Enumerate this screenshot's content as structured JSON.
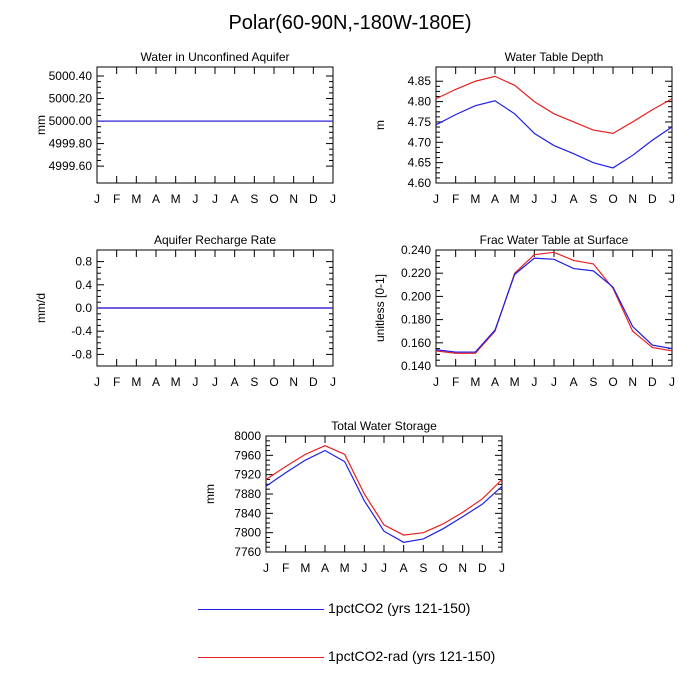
{
  "title": "Polar(60-90N,-180W-180E)",
  "months": [
    "J",
    "F",
    "M",
    "A",
    "M",
    "J",
    "J",
    "A",
    "S",
    "O",
    "N",
    "D",
    "J"
  ],
  "colors": {
    "blue": "#1f1fe6",
    "red": "#e62020"
  },
  "legend": [
    {
      "label": "1pctCO2 (yrs 121-150)",
      "color": "#1f1fe6"
    },
    {
      "label": "1pctCO2-rad (yrs 121-150)",
      "color": "#e62020"
    }
  ],
  "chart_data": [
    {
      "type": "line",
      "title": "Water in Unconfined Aquifer",
      "ylabel": "mm",
      "ylim": [
        4999.45,
        5000.48
      ],
      "yticks": [
        4999.6,
        4999.8,
        5000.0,
        5000.2,
        5000.4
      ],
      "ytick_labels": [
        "4999.60",
        "4999.80",
        "5000.00",
        "5000.20",
        "5000.40"
      ],
      "series": [
        {
          "name": "1pctCO2 (yrs 121-150)",
          "values": [
            5000.0,
            5000.0,
            5000.0,
            5000.0,
            5000.0,
            5000.0,
            5000.0,
            5000.0,
            5000.0,
            5000.0,
            5000.0,
            5000.0,
            5000.0
          ]
        },
        {
          "name": "1pctCO2-rad (yrs 121-150)",
          "values": [
            5000.0,
            5000.0,
            5000.0,
            5000.0,
            5000.0,
            5000.0,
            5000.0,
            5000.0,
            5000.0,
            5000.0,
            5000.0,
            5000.0,
            5000.0
          ]
        }
      ]
    },
    {
      "type": "line",
      "title": "Water Table Depth",
      "ylabel": "m",
      "ylim": [
        4.6,
        4.885
      ],
      "yticks": [
        4.6,
        4.65,
        4.7,
        4.75,
        4.8,
        4.85
      ],
      "ytick_labels": [
        "4.60",
        "4.65",
        "4.70",
        "4.75",
        "4.80",
        "4.85"
      ],
      "series": [
        {
          "name": "1pctCO2 (yrs 121-150)",
          "values": [
            4.743,
            4.768,
            4.79,
            4.802,
            4.77,
            4.722,
            4.692,
            4.672,
            4.65,
            4.637,
            4.668,
            4.705,
            4.738
          ]
        },
        {
          "name": "1pctCO2-rad (yrs 121-150)",
          "values": [
            4.807,
            4.83,
            4.85,
            4.862,
            4.84,
            4.8,
            4.77,
            4.75,
            4.73,
            4.722,
            4.75,
            4.78,
            4.807
          ]
        }
      ]
    },
    {
      "type": "line",
      "title": "Aquifer Recharge Rate",
      "ylabel": "mm/d",
      "ylim": [
        -1.0,
        1.0
      ],
      "yticks": [
        -0.8,
        -0.4,
        0.0,
        0.4,
        0.8
      ],
      "ytick_labels": [
        "-0.8",
        "-0.4",
        "0.0",
        "0.4",
        "0.8"
      ],
      "series": [
        {
          "name": "1pctCO2 (yrs 121-150)",
          "values": [
            0,
            0,
            0,
            0,
            0,
            0,
            0,
            0,
            0,
            0,
            0,
            0,
            0
          ]
        },
        {
          "name": "1pctCO2-rad (yrs 121-150)",
          "values": [
            0,
            0,
            0,
            0,
            0,
            0,
            0,
            0,
            0,
            0,
            0,
            0,
            0
          ]
        }
      ]
    },
    {
      "type": "line",
      "title": "Frac Water Table at Surface",
      "ylabel": "unitless [0-1]",
      "ylim": [
        0.14,
        0.24
      ],
      "yticks": [
        0.14,
        0.16,
        0.18,
        0.2,
        0.22,
        0.24
      ],
      "ytick_labels": [
        "0.140",
        "0.160",
        "0.180",
        "0.200",
        "0.220",
        "0.240"
      ],
      "series": [
        {
          "name": "1pctCO2 (yrs 121-150)",
          "values": [
            0.154,
            0.152,
            0.152,
            0.171,
            0.219,
            0.233,
            0.232,
            0.224,
            0.222,
            0.208,
            0.174,
            0.158,
            0.155
          ]
        },
        {
          "name": "1pctCO2-rad (yrs 121-150)",
          "values": [
            0.153,
            0.151,
            0.151,
            0.17,
            0.22,
            0.236,
            0.238,
            0.231,
            0.228,
            0.207,
            0.17,
            0.156,
            0.153
          ]
        }
      ]
    },
    {
      "type": "line",
      "title": "Total Water Storage",
      "ylabel": "mm",
      "ylim": [
        7760,
        8000
      ],
      "yticks": [
        7760,
        7800,
        7840,
        7880,
        7920,
        7960,
        8000
      ],
      "ytick_labels": [
        "7760",
        "7800",
        "7840",
        "7880",
        "7920",
        "7960",
        "8000"
      ],
      "series": [
        {
          "name": "1pctCO2 (yrs 121-150)",
          "values": [
            7896,
            7924,
            7950,
            7970,
            7947,
            7866,
            7803,
            7780,
            7787,
            7808,
            7833,
            7859,
            7896
          ]
        },
        {
          "name": "1pctCO2-rad (yrs 121-150)",
          "values": [
            7910,
            7937,
            7962,
            7980,
            7962,
            7880,
            7816,
            7795,
            7800,
            7818,
            7842,
            7870,
            7910
          ]
        }
      ]
    }
  ]
}
